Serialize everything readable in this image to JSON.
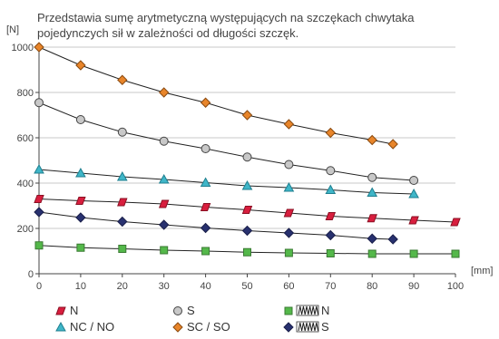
{
  "chart_data": {
    "type": "line",
    "description_lines": [
      "Przedstawia sumę arytmetyczną występujących na szczękach chwytaka",
      "pojedynczych sił w zależności od długości szczęk."
    ],
    "ylabel": "[N]",
    "xlabel": "[mm]",
    "xlim": [
      0,
      100
    ],
    "ylim": [
      0,
      1000
    ],
    "x_ticks": [
      0,
      10,
      20,
      30,
      40,
      50,
      60,
      70,
      80,
      90,
      100
    ],
    "y_ticks": [
      0,
      200,
      400,
      600,
      800,
      1000
    ],
    "grid": "horizontal",
    "legend_position": "bottom",
    "series": [
      {
        "name": "N",
        "marker": "parallelogram",
        "color": "#d81e3e",
        "points": [
          [
            0,
            330
          ],
          [
            10,
            322
          ],
          [
            20,
            316
          ],
          [
            30,
            308
          ],
          [
            40,
            294
          ],
          [
            50,
            282
          ],
          [
            60,
            268
          ],
          [
            70,
            254
          ],
          [
            80,
            245
          ],
          [
            90,
            236
          ],
          [
            100,
            228
          ]
        ]
      },
      {
        "name": "NC / NO",
        "marker": "triangle",
        "color": "#3fb6c8",
        "points": [
          [
            0,
            460
          ],
          [
            10,
            444
          ],
          [
            20,
            428
          ],
          [
            30,
            416
          ],
          [
            40,
            402
          ],
          [
            50,
            388
          ],
          [
            60,
            380
          ],
          [
            70,
            370
          ],
          [
            80,
            358
          ],
          [
            90,
            352
          ]
        ]
      },
      {
        "name": "S",
        "marker": "circle",
        "color": "#c8c8c8",
        "points": [
          [
            0,
            755
          ],
          [
            10,
            680
          ],
          [
            20,
            625
          ],
          [
            30,
            585
          ],
          [
            40,
            552
          ],
          [
            50,
            515
          ],
          [
            60,
            482
          ],
          [
            70,
            455
          ],
          [
            80,
            425
          ],
          [
            90,
            412
          ]
        ]
      },
      {
        "name": "SC / SO",
        "marker": "diamond",
        "color": "#e8852a",
        "points": [
          [
            0,
            1000
          ],
          [
            10,
            920
          ],
          [
            20,
            855
          ],
          [
            30,
            800
          ],
          [
            40,
            755
          ],
          [
            50,
            700
          ],
          [
            60,
            660
          ],
          [
            70,
            622
          ],
          [
            80,
            590
          ],
          [
            85,
            572
          ]
        ]
      },
      {
        "name": "N",
        "prefix_icon": "spring-icon",
        "marker": "square",
        "color": "#54b84a",
        "points": [
          [
            0,
            125
          ],
          [
            10,
            115
          ],
          [
            20,
            110
          ],
          [
            30,
            104
          ],
          [
            40,
            100
          ],
          [
            50,
            95
          ],
          [
            60,
            92
          ],
          [
            70,
            90
          ],
          [
            80,
            88
          ],
          [
            90,
            88
          ],
          [
            100,
            88
          ]
        ]
      },
      {
        "name": "S",
        "prefix_icon": "spring-icon",
        "marker": "diamond",
        "color": "#28316f",
        "points": [
          [
            0,
            272
          ],
          [
            10,
            248
          ],
          [
            20,
            230
          ],
          [
            30,
            216
          ],
          [
            40,
            202
          ],
          [
            50,
            190
          ],
          [
            60,
            180
          ],
          [
            70,
            170
          ],
          [
            80,
            155
          ],
          [
            85,
            152
          ]
        ]
      }
    ]
  }
}
